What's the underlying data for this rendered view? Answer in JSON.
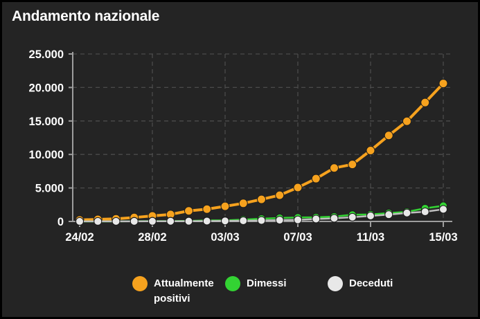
{
  "window": {
    "title": "Andamento nazionale"
  },
  "theme": {
    "background": "#242424",
    "border": "#000000",
    "text": "#ffffff",
    "grid": "#4b4b4b",
    "axis": "#9e9e9e",
    "orange": "#F6A21E",
    "green": "#33D333",
    "light": "#E8E8E8"
  },
  "chart_data": {
    "type": "line",
    "title": "Andamento nazionale",
    "categories": [
      "24/02",
      "25/02",
      "26/02",
      "27/02",
      "28/02",
      "29/02",
      "01/03",
      "02/03",
      "03/03",
      "04/03",
      "05/03",
      "06/03",
      "07/03",
      "08/03",
      "09/03",
      "10/03",
      "11/03",
      "12/03",
      "13/03",
      "14/03",
      "15/03"
    ],
    "x_tick_indices": [
      0,
      4,
      8,
      12,
      16,
      20
    ],
    "x_tick_labels": [
      "24/02",
      "28/02",
      "03/03",
      "07/03",
      "11/03",
      "15/03"
    ],
    "y_ticks": [
      {
        "value": 0,
        "label": "0"
      },
      {
        "value": 5000,
        "label": "5.000"
      },
      {
        "value": 10000,
        "label": "10.000"
      },
      {
        "value": 15000,
        "label": "15.000"
      },
      {
        "value": 20000,
        "label": "20.000"
      },
      {
        "value": 25000,
        "label": "25.000"
      }
    ],
    "ylim": [
      0,
      25000
    ],
    "grid": "dashed",
    "legend_position": "bottom",
    "series": [
      {
        "name": "Attualmente positivi",
        "color": "#F6A21E",
        "line_width": 4,
        "marker_radius": 6,
        "values": [
          221,
          311,
          385,
          588,
          821,
          1049,
          1577,
          1835,
          2263,
          2706,
          3296,
          3916,
          5061,
          6387,
          7985,
          8514,
          10590,
          12839,
          14955,
          17750,
          20603
        ]
      },
      {
        "name": "Dimessi",
        "color": "#33D333",
        "line_width": 2.5,
        "marker_radius": 5.5,
        "values": [
          1,
          1,
          3,
          45,
          46,
          50,
          83,
          149,
          160,
          276,
          414,
          523,
          589,
          622,
          724,
          1004,
          1045,
          1258,
          1439,
          1966,
          2335
        ]
      },
      {
        "name": "Deceduti",
        "color": "#E8E8E8",
        "line_color": "#BFBFBF",
        "line_width": 2.5,
        "marker_radius": 5.5,
        "values": [
          7,
          10,
          12,
          17,
          21,
          29,
          34,
          52,
          79,
          107,
          148,
          197,
          233,
          366,
          463,
          631,
          827,
          1016,
          1266,
          1441,
          1809
        ]
      }
    ]
  }
}
